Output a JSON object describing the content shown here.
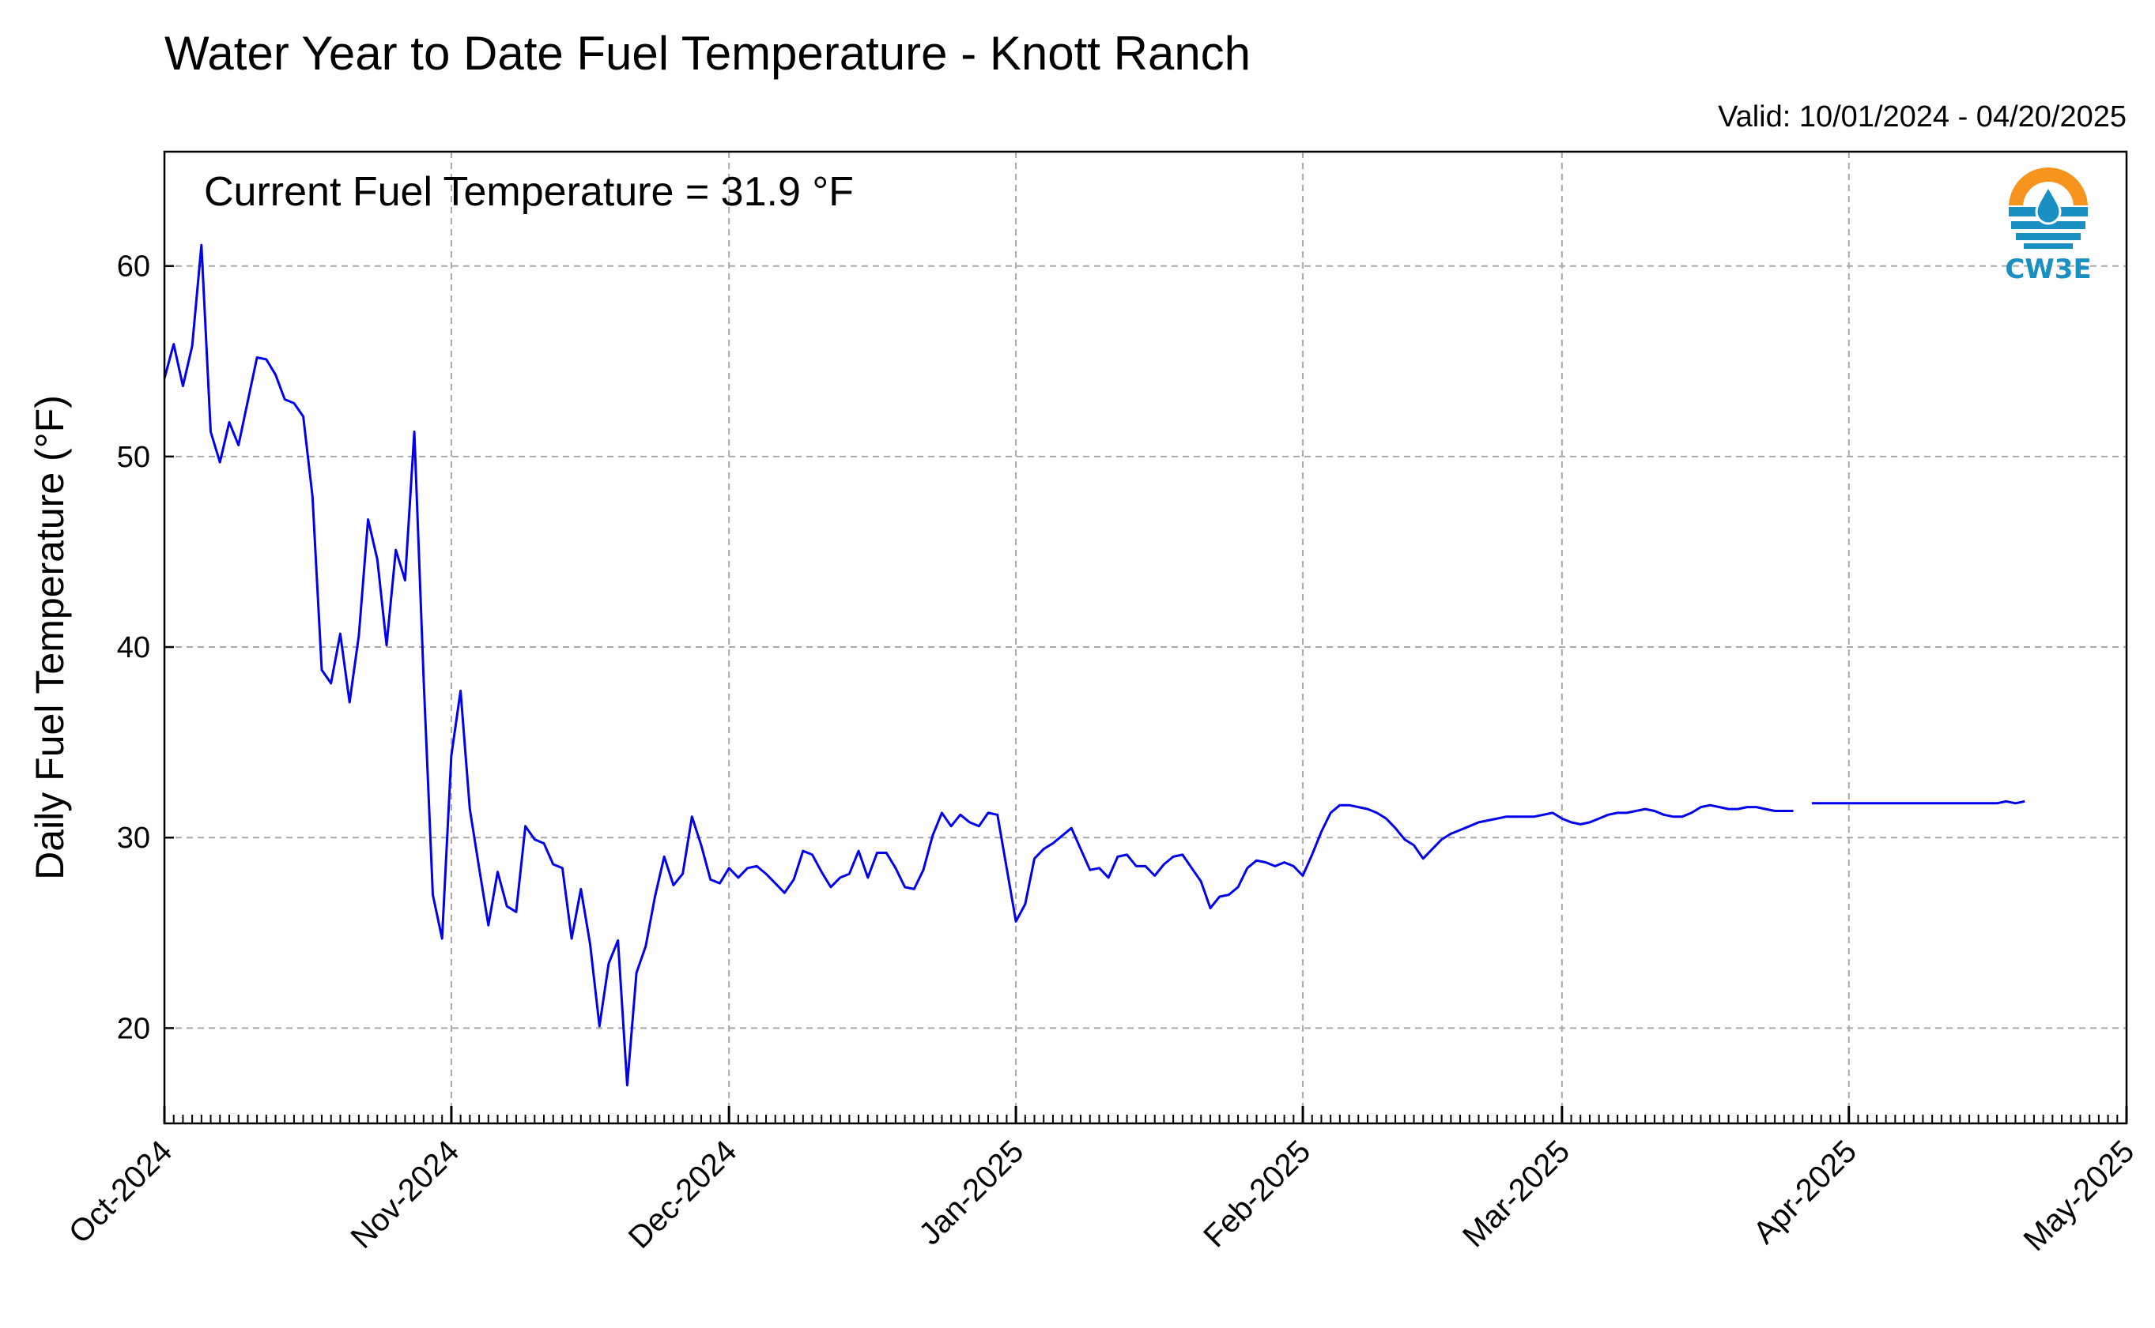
{
  "header": {
    "title": "Water Year to Date Fuel Temperature - Knott Ranch",
    "valid": "Valid: 10/01/2024 - 04/20/2025"
  },
  "annotation": "Current Fuel Temperature = 31.9 °F",
  "logo": {
    "text": "CW3E",
    "icon": "cw3e-water-drop-logo",
    "colors": {
      "orange": "#f7941d",
      "blue": "#1a8fc2"
    }
  },
  "colors": {
    "series": "#0000ee",
    "grid": "#a8a8a8"
  },
  "chart_data": {
    "type": "line",
    "title": "Water Year to Date Fuel Temperature - Knott Ranch",
    "ylabel": "Daily Fuel Temperature (°F)",
    "xlabel": "",
    "xlim": [
      "2024-10-01",
      "2025-05-01"
    ],
    "ylim": [
      15,
      66
    ],
    "yticks": [
      20,
      30,
      40,
      50,
      60
    ],
    "xticks": [
      {
        "date": "2024-10-01",
        "label": "Oct-2024"
      },
      {
        "date": "2024-11-01",
        "label": "Nov-2024"
      },
      {
        "date": "2024-12-01",
        "label": "Dec-2024"
      },
      {
        "date": "2025-01-01",
        "label": "Jan-2025"
      },
      {
        "date": "2025-02-01",
        "label": "Feb-2025"
      },
      {
        "date": "2025-03-01",
        "label": "Mar-2025"
      },
      {
        "date": "2025-04-01",
        "label": "Apr-2025"
      },
      {
        "date": "2025-05-01",
        "label": "May-2025"
      }
    ],
    "grid": true,
    "series": [
      {
        "segments": [
          [
            [
              "2024-10-01",
              54.1
            ],
            [
              "2024-10-02",
              55.9
            ],
            [
              "2024-10-03",
              53.7
            ],
            [
              "2024-10-04",
              55.8
            ],
            [
              "2024-10-05",
              61.1
            ],
            [
              "2024-10-06",
              51.3
            ],
            [
              "2024-10-07",
              49.7
            ],
            [
              "2024-10-08",
              51.8
            ],
            [
              "2024-10-09",
              50.6
            ],
            [
              "2024-10-10",
              52.9
            ],
            [
              "2024-10-11",
              55.2
            ],
            [
              "2024-10-12",
              55.1
            ],
            [
              "2024-10-13",
              54.3
            ],
            [
              "2024-10-14",
              53.0
            ],
            [
              "2024-10-15",
              52.8
            ],
            [
              "2024-10-16",
              52.1
            ],
            [
              "2024-10-17",
              47.9
            ],
            [
              "2024-10-18",
              38.8
            ],
            [
              "2024-10-19",
              38.1
            ],
            [
              "2024-10-20",
              40.7
            ],
            [
              "2024-10-21",
              37.1
            ],
            [
              "2024-10-22",
              40.6
            ],
            [
              "2024-10-23",
              46.7
            ],
            [
              "2024-10-24",
              44.6
            ],
            [
              "2024-10-25",
              40.1
            ],
            [
              "2024-10-26",
              45.1
            ],
            [
              "2024-10-27",
              43.5
            ],
            [
              "2024-10-28",
              51.3
            ],
            [
              "2024-10-29",
              38.4
            ],
            [
              "2024-10-30",
              27.0
            ],
            [
              "2024-10-31",
              24.7
            ],
            [
              "2024-11-01",
              34.3
            ],
            [
              "2024-11-02",
              37.7
            ],
            [
              "2024-11-03",
              31.5
            ],
            [
              "2024-11-04",
              28.4
            ],
            [
              "2024-11-05",
              25.4
            ],
            [
              "2024-11-06",
              28.2
            ],
            [
              "2024-11-07",
              26.4
            ],
            [
              "2024-11-08",
              26.1
            ],
            [
              "2024-11-09",
              30.6
            ],
            [
              "2024-11-10",
              29.9
            ],
            [
              "2024-11-11",
              29.7
            ],
            [
              "2024-11-12",
              28.6
            ],
            [
              "2024-11-13",
              28.4
            ],
            [
              "2024-11-14",
              24.7
            ],
            [
              "2024-11-15",
              27.3
            ],
            [
              "2024-11-16",
              24.4
            ],
            [
              "2024-11-17",
              20.1
            ],
            [
              "2024-11-18",
              23.4
            ],
            [
              "2024-11-19",
              24.6
            ],
            [
              "2024-11-20",
              17.0
            ],
            [
              "2024-11-21",
              22.9
            ],
            [
              "2024-11-22",
              24.3
            ],
            [
              "2024-11-23",
              26.9
            ],
            [
              "2024-11-24",
              29.0
            ],
            [
              "2024-11-25",
              27.5
            ],
            [
              "2024-11-26",
              28.1
            ],
            [
              "2024-11-27",
              31.1
            ],
            [
              "2024-11-28",
              29.6
            ],
            [
              "2024-11-29",
              27.8
            ],
            [
              "2024-11-30",
              27.6
            ],
            [
              "2024-12-01",
              28.4
            ],
            [
              "2024-12-02",
              27.9
            ],
            [
              "2024-12-03",
              28.4
            ],
            [
              "2024-12-04",
              28.5
            ],
            [
              "2024-12-05",
              28.1
            ],
            [
              "2024-12-06",
              27.6
            ],
            [
              "2024-12-07",
              27.1
            ],
            [
              "2024-12-08",
              27.8
            ],
            [
              "2024-12-09",
              29.3
            ],
            [
              "2024-12-10",
              29.1
            ],
            [
              "2024-12-11",
              28.2
            ],
            [
              "2024-12-12",
              27.4
            ],
            [
              "2024-12-13",
              27.9
            ],
            [
              "2024-12-14",
              28.1
            ],
            [
              "2024-12-15",
              29.3
            ],
            [
              "2024-12-16",
              27.9
            ],
            [
              "2024-12-17",
              29.2
            ],
            [
              "2024-12-18",
              29.2
            ],
            [
              "2024-12-19",
              28.4
            ],
            [
              "2024-12-20",
              27.4
            ],
            [
              "2024-12-21",
              27.3
            ],
            [
              "2024-12-22",
              28.3
            ],
            [
              "2024-12-23",
              30.1
            ],
            [
              "2024-12-24",
              31.3
            ],
            [
              "2024-12-25",
              30.6
            ],
            [
              "2024-12-26",
              31.2
            ],
            [
              "2024-12-27",
              30.8
            ],
            [
              "2024-12-28",
              30.6
            ],
            [
              "2024-12-29",
              31.3
            ],
            [
              "2024-12-30",
              31.2
            ],
            [
              "2024-12-31",
              28.4
            ],
            [
              "2025-01-01",
              25.6
            ],
            [
              "2025-01-02",
              26.5
            ],
            [
              "2025-01-03",
              28.9
            ],
            [
              "2025-01-04",
              29.4
            ],
            [
              "2025-01-05",
              29.7
            ],
            [
              "2025-01-06",
              30.1
            ],
            [
              "2025-01-07",
              30.5
            ],
            [
              "2025-01-08",
              29.4
            ],
            [
              "2025-01-09",
              28.3
            ],
            [
              "2025-01-10",
              28.4
            ],
            [
              "2025-01-11",
              27.9
            ],
            [
              "2025-01-12",
              29.0
            ],
            [
              "2025-01-13",
              29.1
            ],
            [
              "2025-01-14",
              28.5
            ],
            [
              "2025-01-15",
              28.5
            ],
            [
              "2025-01-16",
              28.0
            ],
            [
              "2025-01-17",
              28.6
            ],
            [
              "2025-01-18",
              29.0
            ],
            [
              "2025-01-19",
              29.1
            ],
            [
              "2025-01-20",
              28.4
            ],
            [
              "2025-01-21",
              27.7
            ],
            [
              "2025-01-22",
              26.3
            ],
            [
              "2025-01-23",
              26.9
            ],
            [
              "2025-01-24",
              27.0
            ],
            [
              "2025-01-25",
              27.4
            ],
            [
              "2025-01-26",
              28.4
            ],
            [
              "2025-01-27",
              28.8
            ],
            [
              "2025-01-28",
              28.7
            ],
            [
              "2025-01-29",
              28.5
            ],
            [
              "2025-01-30",
              28.7
            ],
            [
              "2025-01-31",
              28.5
            ],
            [
              "2025-02-01",
              28.0
            ],
            [
              "2025-02-02",
              29.1
            ],
            [
              "2025-02-03",
              30.3
            ],
            [
              "2025-02-04",
              31.3
            ],
            [
              "2025-02-05",
              31.7
            ],
            [
              "2025-02-06",
              31.7
            ],
            [
              "2025-02-07",
              31.6
            ],
            [
              "2025-02-08",
              31.5
            ],
            [
              "2025-02-09",
              31.3
            ],
            [
              "2025-02-10",
              31.0
            ],
            [
              "2025-02-11",
              30.5
            ],
            [
              "2025-02-12",
              29.9
            ],
            [
              "2025-02-13",
              29.6
            ],
            [
              "2025-02-14",
              28.9
            ],
            [
              "2025-02-15",
              29.4
            ],
            [
              "2025-02-16",
              29.9
            ],
            [
              "2025-02-17",
              30.2
            ],
            [
              "2025-02-18",
              30.4
            ],
            [
              "2025-02-19",
              30.6
            ],
            [
              "2025-02-20",
              30.8
            ],
            [
              "2025-02-21",
              30.9
            ],
            [
              "2025-02-22",
              31.0
            ],
            [
              "2025-02-23",
              31.1
            ],
            [
              "2025-02-24",
              31.1
            ],
            [
              "2025-02-25",
              31.1
            ],
            [
              "2025-02-26",
              31.1
            ],
            [
              "2025-02-27",
              31.2
            ],
            [
              "2025-02-28",
              31.3
            ],
            [
              "2025-03-01",
              31.0
            ],
            [
              "2025-03-02",
              30.8
            ],
            [
              "2025-03-03",
              30.7
            ],
            [
              "2025-03-04",
              30.8
            ],
            [
              "2025-03-05",
              31.0
            ],
            [
              "2025-03-06",
              31.2
            ],
            [
              "2025-03-07",
              31.3
            ],
            [
              "2025-03-08",
              31.3
            ],
            [
              "2025-03-09",
              31.4
            ],
            [
              "2025-03-10",
              31.5
            ],
            [
              "2025-03-11",
              31.4
            ],
            [
              "2025-03-12",
              31.2
            ],
            [
              "2025-03-13",
              31.1
            ],
            [
              "2025-03-14",
              31.1
            ],
            [
              "2025-03-15",
              31.3
            ],
            [
              "2025-03-16",
              31.6
            ],
            [
              "2025-03-17",
              31.7
            ],
            [
              "2025-03-18",
              31.6
            ],
            [
              "2025-03-19",
              31.5
            ],
            [
              "2025-03-20",
              31.5
            ],
            [
              "2025-03-21",
              31.6
            ],
            [
              "2025-03-22",
              31.6
            ],
            [
              "2025-03-23",
              31.5
            ],
            [
              "2025-03-24",
              31.4
            ],
            [
              "2025-03-25",
              31.4
            ],
            [
              "2025-03-26",
              31.4
            ]
          ],
          [
            [
              "2025-03-28",
              31.8
            ],
            [
              "2025-04-01",
              31.8
            ],
            [
              "2025-04-05",
              31.8
            ],
            [
              "2025-04-10",
              31.8
            ],
            [
              "2025-04-15",
              31.8
            ],
            [
              "2025-04-17",
              31.8
            ],
            [
              "2025-04-18",
              31.9
            ],
            [
              "2025-04-19",
              31.8
            ],
            [
              "2025-04-20",
              31.9
            ]
          ]
        ]
      }
    ]
  }
}
